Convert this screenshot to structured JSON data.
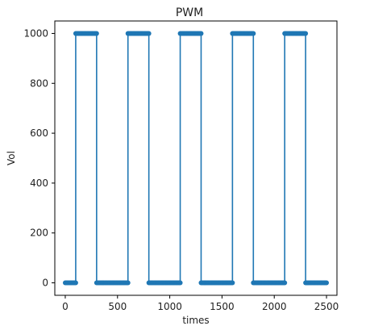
{
  "chart_data": {
    "type": "line",
    "title": "PWM",
    "xlabel": "times",
    "ylabel": "Vol",
    "xlim": [
      -100,
      2600
    ],
    "ylim": [
      -50,
      1050
    ],
    "xticks": [
      0,
      500,
      1000,
      1500,
      2000,
      2500
    ],
    "yticks": [
      0,
      200,
      400,
      600,
      800,
      1000
    ],
    "grid": false,
    "legend": "none",
    "series": [
      {
        "color": "#1f77b4",
        "marker": "circle",
        "x": [
          0,
          100,
          100,
          300,
          300,
          600,
          600,
          800,
          800,
          1100,
          1100,
          1300,
          1300,
          1600,
          1600,
          1800,
          1800,
          2100,
          2100,
          2300,
          2300,
          2500
        ],
        "y": [
          0,
          0,
          1000,
          1000,
          0,
          0,
          1000,
          1000,
          0,
          0,
          1000,
          1000,
          0,
          0,
          1000,
          1000,
          0,
          0,
          1000,
          1000,
          0,
          0
        ],
        "marker_step": 10
      }
    ]
  }
}
